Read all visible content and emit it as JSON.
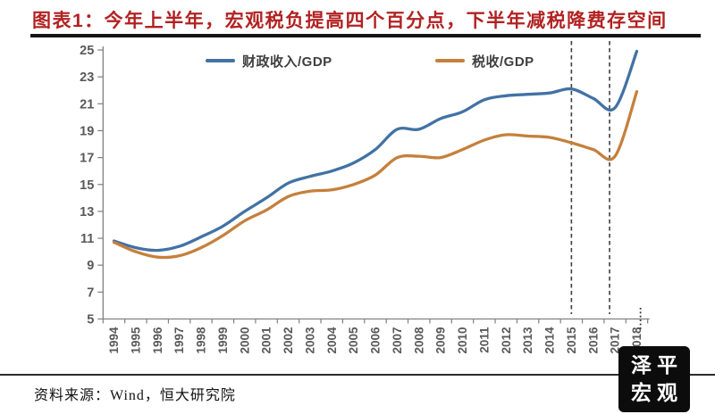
{
  "title": "图表1：今年上半年，宏观税负提高四个百分点，下半年减税降费存空间",
  "source": "资料来源：Wind，恒大研究院",
  "logo": {
    "line1": "泽平",
    "line2": "宏观"
  },
  "colors": {
    "title_red": "#B22222",
    "fiscal_blue": "#4272A4",
    "tax_orange": "#C5803C",
    "axis_text": "#595959",
    "axis_line": "#808080",
    "dashed_line": "#3F3F3F"
  },
  "chart_data": {
    "type": "line",
    "title": "图表1：今年上半年，宏观税负提高四个百分点，下半年减税降费存空间",
    "categories": [
      "1994",
      "1995",
      "1996",
      "1997",
      "1998",
      "1999",
      "2000",
      "2001",
      "2002",
      "2003",
      "2004",
      "2005",
      "2006",
      "2007",
      "2008",
      "2009",
      "2010",
      "2011",
      "2012",
      "2013",
      "2014",
      "2015",
      "2016",
      "2017",
      "2018"
    ],
    "series": [
      {
        "name": "财政收入/GDP",
        "color": "#4272A4",
        "values": [
          10.8,
          10.3,
          10.1,
          10.4,
          11.1,
          11.9,
          13.0,
          14.0,
          15.1,
          15.6,
          16.0,
          16.6,
          17.6,
          19.1,
          19.1,
          19.9,
          20.4,
          21.3,
          21.6,
          21.7,
          21.8,
          22.1,
          21.4,
          20.7,
          24.9
        ]
      },
      {
        "name": "税收/GDP",
        "color": "#C5803C",
        "values": [
          10.7,
          10.0,
          9.6,
          9.7,
          10.3,
          11.2,
          12.3,
          13.1,
          14.1,
          14.5,
          14.6,
          15.0,
          15.7,
          17.0,
          17.1,
          17.0,
          17.6,
          18.3,
          18.7,
          18.6,
          18.5,
          18.1,
          17.6,
          17.1,
          21.9
        ]
      }
    ],
    "xlabel": "",
    "ylabel": "",
    "ylim": [
      5,
      25
    ],
    "yticks": [
      5,
      7,
      9,
      11,
      13,
      15,
      17,
      19,
      21,
      23,
      25
    ],
    "grid": false,
    "legend_position": "top",
    "annotations": {
      "dashed_vlines_years": [
        2015,
        2016.75
      ],
      "axis_dotted_mark_year": 2018.17
    }
  }
}
